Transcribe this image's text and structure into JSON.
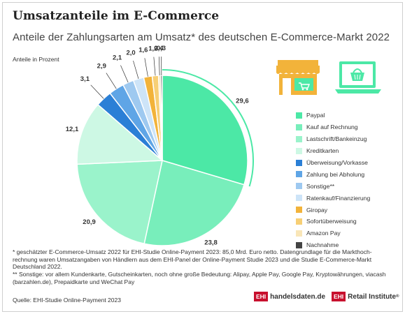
{
  "title": "Umsatzanteile im E-Commerce",
  "subtitle": "Anteile der Zahlungsarten am Umsatz* des deutschen E-Commerce-Markt 2022",
  "unit_label": "Anteile in Prozent",
  "notes": [
    "* geschätzter E-Commerce-Umsatz 2022 für EHI-Studie Online-Payment 2023: 85,0 Mrd. Euro netto. Datengrundlage für die Markthoch-rechnung waren Umsatzangaben von Händlern aus dem EHI-Panel der Online-Payment Studie 2023 und die Studie E-Commerce-Markt Deutschland 2022.",
    "** Sonstige: vor allem Kundenkarte, Gutscheinkarten, noch ohne große Bedeutung: Alipay, Apple Pay, Google Pay, Kryptowährungen, viacash (barzahlen.de), Prepaidkarte und WeChat Pay"
  ],
  "source": "Quelle: EHI-Studie Online-Payment 2023",
  "logos": {
    "badge": "EHI",
    "left_text": "handelsdaten.de",
    "right_text": "Retail Institute",
    "right_sup": "®"
  },
  "icons": {
    "shop": "shop-icon",
    "laptop": "laptop-shopping-icon"
  },
  "chart_data": {
    "type": "pie",
    "title": "",
    "labels": [
      "Paypal",
      "Kauf auf Rechnung",
      "Lastschrift/Bankeinzug",
      "Kreditkarten",
      "Überweisung/Vorkasse",
      "Zahlung bei Abholung",
      "Sonstige**",
      "Ratenkauf/Finanzierung",
      "Giropay",
      "Sofortüberweisung",
      "Amazon Pay",
      "Nachnahme"
    ],
    "values": [
      29.6,
      23.8,
      20.9,
      12.1,
      3.1,
      2.9,
      2.1,
      2.0,
      1.6,
      1.2,
      0.4,
      0.3
    ],
    "value_labels": [
      "29,6",
      "23,8",
      "20,9",
      "12,1",
      "3,1",
      "2,9",
      "2,1",
      "2,0",
      "1,6",
      "1,2",
      "0,4",
      "0,3"
    ],
    "colors": [
      "#4ce8a6",
      "#78eebb",
      "#9af3cb",
      "#cdf8e4",
      "#2b7fd6",
      "#5fa5e6",
      "#9ec9f0",
      "#cde4f8",
      "#f2b33a",
      "#f7cf75",
      "#f9e6b8",
      "#444444"
    ],
    "legend_position": "right",
    "highlight_ring": "Paypal"
  }
}
